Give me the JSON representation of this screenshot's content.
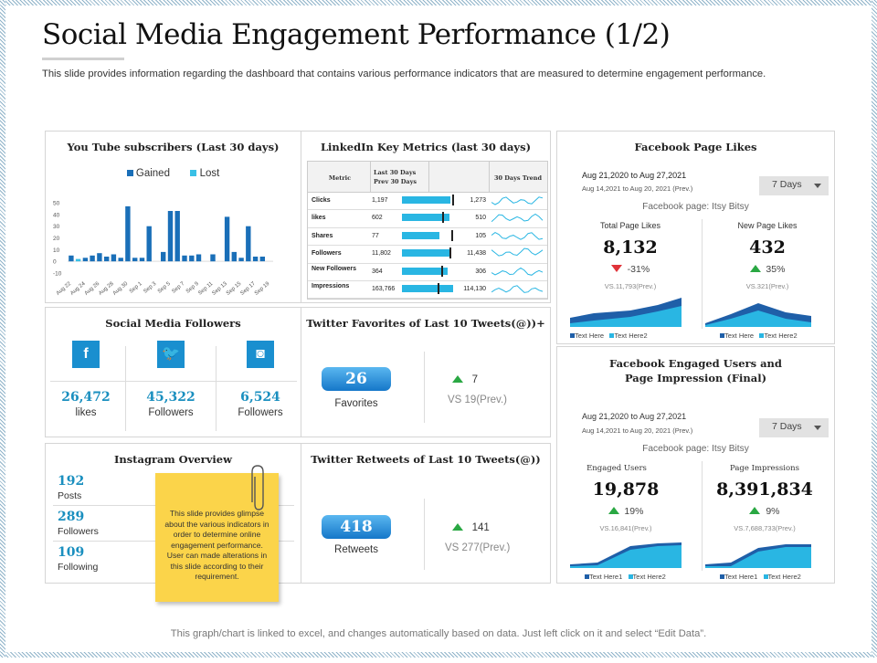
{
  "header": {
    "title": "Social Media Engagement Performance (1/2)",
    "subtitle": "This slide provides information regarding the dashboard that contains various performance indicators that are measured to determine engagement performance."
  },
  "footer": {
    "text": "This graph/chart is linked to excel, and changes automatically based on data. Just left click on it and select “Edit Data”."
  },
  "colors": {
    "accent": "#1a8fcf",
    "dark_blue": "#1f5fa8",
    "light_blue": "#29b6e3",
    "up_green": "#2aa843",
    "down_red": "#e0333a",
    "note_yellow": "#fbd44a"
  },
  "youtube": {
    "title": "You Tube subscribers (Last 30 days)",
    "legend": [
      "Gained",
      "Lost"
    ]
  },
  "chart_data": {
    "type": "bar",
    "title": "You Tube subscribers (Last 30 days)",
    "categories": [
      "Aug 22",
      "Aug 23",
      "Aug 24",
      "Aug 25",
      "Aug 26",
      "Aug 27",
      "Aug 28",
      "Aug 29",
      "Aug 30",
      "Aug 31",
      "Sep 1",
      "Sep 2",
      "Sep 3",
      "Sep 4",
      "Sep 5",
      "Sep 6",
      "Sep 7",
      "Sep 8",
      "Sep 9",
      "Sep 10",
      "Sep 11",
      "Sep 12",
      "Sep 13",
      "Sep 14",
      "Sep 15",
      "Sep 16",
      "Sep 17",
      "Sep 18",
      "Sep 19"
    ],
    "tick_labels": [
      "Aug 22",
      "Aug 24",
      "Aug 26",
      "Aug 28",
      "Aug 30",
      "Sep 1",
      "Sep 3",
      "Sep 5",
      "Sep 7",
      "Sep 9",
      "Sep 11",
      "Sep 13",
      "Sep 15",
      "Sep 17",
      "Sep 19"
    ],
    "series": [
      {
        "name": "Gained",
        "values": [
          5,
          0,
          3,
          5,
          7,
          4,
          6,
          3,
          47,
          3,
          3,
          30,
          0,
          8,
          43,
          43,
          5,
          5,
          6,
          0,
          6,
          0,
          38,
          8,
          3,
          30,
          4,
          4,
          0
        ]
      },
      {
        "name": "Lost",
        "values": [
          0,
          2,
          0,
          0,
          0,
          0,
          0,
          0,
          0,
          0,
          0,
          0,
          0,
          0,
          0,
          0,
          0,
          0,
          0,
          0,
          0,
          0,
          0,
          0,
          0,
          0,
          0,
          0,
          0
        ]
      }
    ],
    "yticks": [
      50,
      40,
      30,
      20,
      10,
      0,
      -10
    ],
    "ylim": [
      -10,
      50
    ],
    "legend_position": "top-center",
    "grid": false
  },
  "linkedin": {
    "title": "LinkedIn Key Metrics (last 30 days)",
    "headers": [
      "Metric",
      "Last 30 Days Prev 30 Days",
      "",
      "30 Days Trend"
    ],
    "rows": [
      {
        "metric": "Clicks",
        "last": "1,197",
        "prev": "1,273",
        "fill": 0.94,
        "marker": 0.98
      },
      {
        "metric": "likes",
        "last": "602",
        "prev": "510",
        "fill": 0.92,
        "marker": 0.78
      },
      {
        "metric": "Shares",
        "last": "77",
        "prev": "105",
        "fill": 0.73,
        "marker": 0.97
      },
      {
        "metric": "Followers",
        "last": "11,802",
        "prev": "11,438",
        "fill": 0.96,
        "marker": 0.93
      },
      {
        "metric": "New Followers",
        "last": "364",
        "prev": "306",
        "fill": 0.9,
        "marker": 0.76
      },
      {
        "metric": "Impressions",
        "last": "163,766",
        "prev": "114,130",
        "fill": 1.0,
        "marker": 0.7
      }
    ]
  },
  "fb_likes": {
    "title": "Facebook Page Likes",
    "date_range": "Aug 21,2020 to Aug 27,2021",
    "prev_range": "Aug 14,2021  to Aug 20,  2021  (Prev.)",
    "dropdown": "7 Days",
    "page": "Facebook page: Itsy Bitsy",
    "total_label": "Total Page Likes",
    "total_value": "8,132",
    "total_change": "-31%",
    "total_prev": "VS.11,793(Prev.)",
    "new_label": "New Page Likes",
    "new_value": "432",
    "new_change": "35%",
    "new_prev": "VS.321(Prev.)",
    "legend": [
      "Text Here",
      "Text Here2"
    ]
  },
  "social_followers": {
    "title": "Social Media Followers",
    "items": [
      {
        "icon": "facebook-icon",
        "glyph": "f",
        "value": "26,472",
        "label": "likes"
      },
      {
        "icon": "twitter-icon",
        "glyph": "🐦",
        "value": "45,322",
        "label": "Followers"
      },
      {
        "icon": "instagram-icon",
        "glyph": "◙",
        "value": "6,524",
        "label": "Followers"
      }
    ]
  },
  "twitter_fav": {
    "title": "Twitter Favorites of Last 10 Tweets(@))+",
    "value": "26",
    "label": "Favorites",
    "change": "7",
    "prev": "VS 19(Prev.)"
  },
  "twitter_rt": {
    "title": "Twitter Retweets of Last 10 Tweets(@))",
    "value": "418",
    "label": "Retweets",
    "change": "141",
    "prev": "VS 277(Prev.)"
  },
  "instagram": {
    "title": "Instagram Overview",
    "stats": [
      {
        "value": "192",
        "label": "Posts"
      },
      {
        "value": "289",
        "label": "Followers"
      },
      {
        "value": "109",
        "label": "Following"
      }
    ]
  },
  "note": {
    "text": "This slide provides glimpse about the various indicators in order to determine online engagement performance. User can made alterations in this slide according to their requirement."
  },
  "fb_engaged": {
    "title": "Facebook Engaged Users and Page Impression (Final)",
    "date_range": "Aug 21,2020 to Aug 27,2021",
    "prev_range": "Aug 14,2021  to Aug 20,  2021  (Prev.)",
    "dropdown": "7 Days",
    "page": "Facebook page: Itsy Bitsy",
    "engaged_label": "Engaged Users",
    "engaged_value": "19,878",
    "engaged_change": "19%",
    "engaged_prev": "VS.16,841(Prev.)",
    "impr_label": "Page Impressions",
    "impr_value": "8,391,834",
    "impr_change": "9%",
    "impr_prev": "VS.7,688,733(Prev.)",
    "legend": [
      "Text Here1",
      "Text Here2"
    ]
  }
}
